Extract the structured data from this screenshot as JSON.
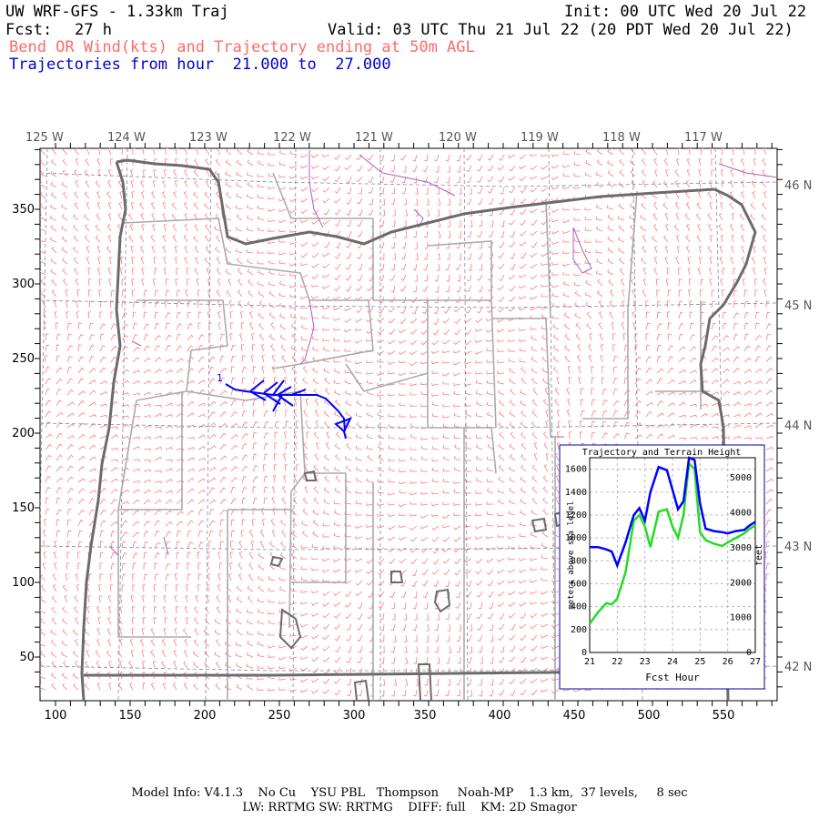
{
  "header": {
    "title_left": "UW WRF-GFS - 1.33km Traj",
    "init": "Init: 00 UTC Wed 20 Jul 22",
    "fcst_label": "Fcst:",
    "fcst_value": "27 h",
    "valid": "Valid: 03 UTC Thu 21 Jul 22 (20 PDT Wed 20 Jul 22)",
    "subtitle_red": "Bend OR Wind(kts) and Trajectory ending at 50m AGL",
    "subtitle_blue": "Trajectories from hour  21.000 to  27.000"
  },
  "map": {
    "top_lon_labels": [
      "125 W",
      "124 W",
      "123 W",
      "122 W",
      "121 W",
      "120 W",
      "119 W",
      "118 W",
      "117 W"
    ],
    "right_lat_labels": [
      "46 N",
      "45 N",
      "44 N",
      "43 N",
      "42 N"
    ],
    "left_y_ticks": [
      "350",
      "300",
      "250",
      "200",
      "150",
      "100",
      "50"
    ],
    "bottom_x_ticks": [
      "100",
      "150",
      "200",
      "250",
      "300",
      "350",
      "400",
      "450",
      "500",
      "550"
    ],
    "trajectory_marker": "1",
    "colors": {
      "wind_barbs": "#ff7a7a",
      "state_border": "#6b6b6b",
      "county_border": "#aaaaaa",
      "water": "#b060c0",
      "trajectory": "#0000ff"
    }
  },
  "inset": {
    "title": "Trajectory and Terrain Height",
    "xlabel": "Fcst Hour",
    "ylabel_left": "meters above sea level",
    "ylabel_right": "feet",
    "x_ticks": [
      "21",
      "22",
      "23",
      "24",
      "25",
      "26",
      "27"
    ],
    "y_ticks_m": [
      "0",
      "200",
      "400",
      "600",
      "800",
      "1000",
      "1200",
      "1400",
      "1600"
    ],
    "y_ticks_ft": [
      "0",
      "1000",
      "2000",
      "3000",
      "4000",
      "5000"
    ]
  },
  "chart_data": {
    "type": "line",
    "title": "Trajectory and Terrain Height",
    "xlabel": "Fcst Hour",
    "ylabel": "meters above sea level",
    "xlim": [
      21,
      27
    ],
    "ylim": [
      0,
      1700
    ],
    "series": [
      {
        "color": "#0000ff",
        "x": [
          21.0,
          21.3,
          21.6,
          21.8,
          22.0,
          22.3,
          22.6,
          22.8,
          23.0,
          23.2,
          23.5,
          23.8,
          24.0,
          24.2,
          24.4,
          24.6,
          24.8,
          25.0,
          25.2,
          25.5,
          25.8,
          26.0,
          26.3,
          26.6,
          26.8,
          27.0
        ],
        "y": [
          920,
          920,
          900,
          880,
          760,
          960,
          1200,
          1260,
          1150,
          1400,
          1620,
          1590,
          1420,
          1250,
          1320,
          1700,
          1680,
          1300,
          1080,
          1060,
          1050,
          1040,
          1060,
          1070,
          1110,
          1140
        ]
      },
      {
        "color": "#22dd22",
        "x": [
          21.0,
          21.3,
          21.6,
          21.8,
          22.0,
          22.3,
          22.6,
          22.8,
          23.0,
          23.2,
          23.5,
          23.8,
          24.0,
          24.2,
          24.4,
          24.6,
          24.8,
          25.0,
          25.2,
          25.5,
          25.8,
          26.0,
          26.3,
          26.6,
          26.8,
          27.0
        ],
        "y": [
          250,
          350,
          430,
          420,
          470,
          700,
          1150,
          1200,
          1100,
          920,
          1230,
          1250,
          1100,
          1000,
          1200,
          1650,
          1600,
          1050,
          980,
          950,
          930,
          960,
          1000,
          1040,
          1080,
          1110
        ]
      }
    ]
  },
  "footer": {
    "line1": "Model Info: V4.1.3    No Cu    YSU PBL   Thompson     Noah-MP    1.3 km,  37 levels,     8 sec",
    "line2": "LW: RRTMG SW: RRTMG    DIFF: full    KM: 2D Smagor"
  }
}
